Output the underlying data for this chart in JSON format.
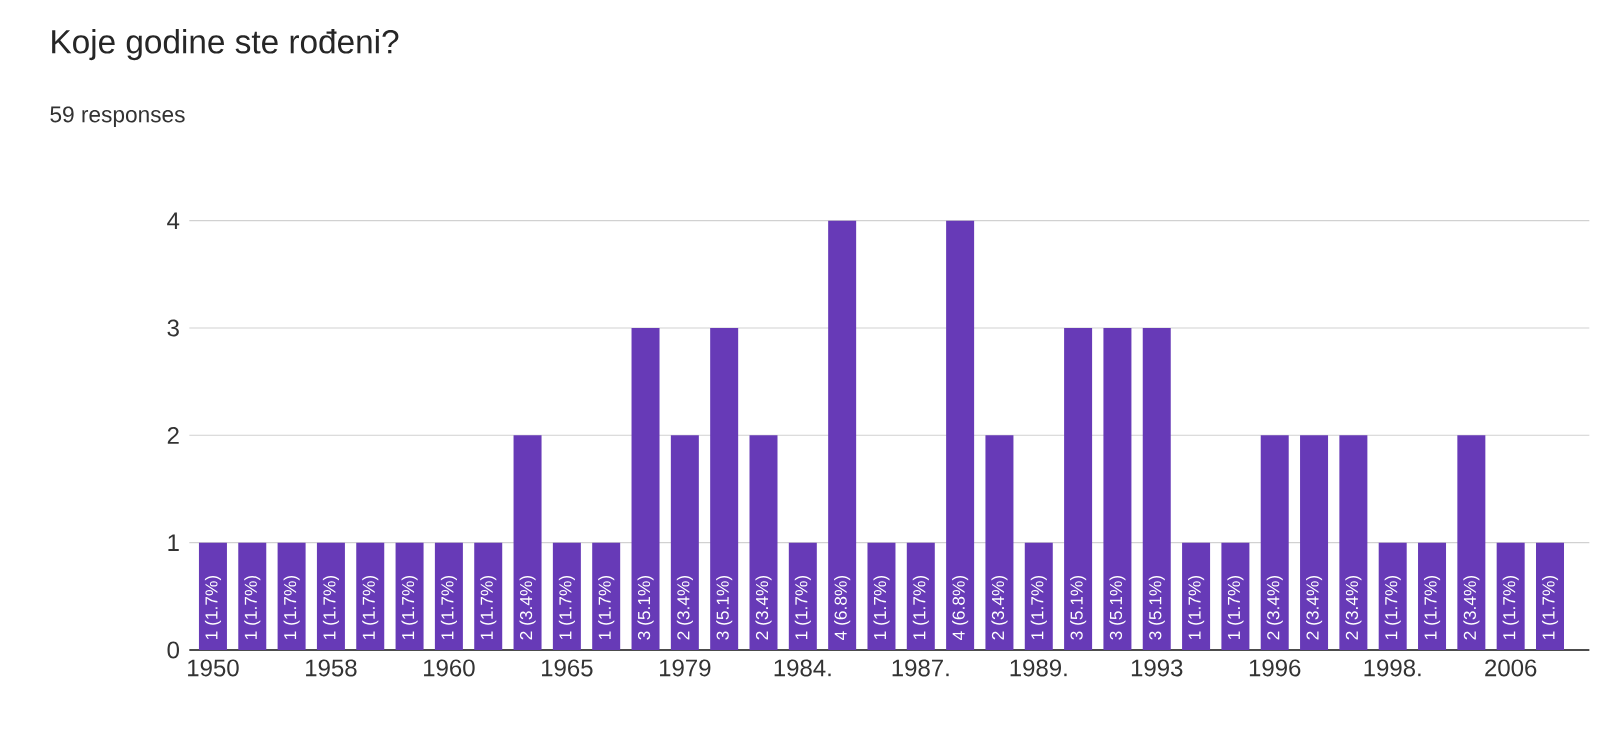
{
  "chart_data": {
    "type": "bar",
    "title": "Koje godine ste rođeni?",
    "subtitle": "59 responses",
    "categories": [
      "1950",
      null,
      null,
      "1958",
      null,
      null,
      "1960",
      null,
      null,
      "1965",
      null,
      null,
      "1979",
      null,
      null,
      "1984.",
      null,
      null,
      "1987.",
      null,
      null,
      "1989.",
      null,
      null,
      "1993",
      null,
      null,
      "1996",
      null,
      null,
      "1998.",
      null,
      null,
      "2006",
      null
    ],
    "values": [
      1,
      1,
      1,
      1,
      1,
      1,
      1,
      1,
      2,
      1,
      1,
      3,
      2,
      3,
      2,
      1,
      4,
      1,
      1,
      4,
      2,
      1,
      3,
      3,
      3,
      1,
      1,
      2,
      2,
      2,
      1,
      1,
      2,
      1,
      1
    ],
    "value_labels": [
      "1 (1.7%)",
      "1 (1.7%)",
      "1 (1.7%)",
      "1 (1.7%)",
      "1 (1.7%)",
      "1 (1.7%)",
      "1 (1.7%)",
      "1 (1.7%)",
      "2 (3.4%)",
      "1 (1.7%)",
      "1 (1.7%)",
      "3 (5.1%)",
      "2 (3.4%)",
      "3 (5.1%)",
      "2 (3.4%)",
      "1 (1.7%)",
      "4 (6.8%)",
      "1 (1.7%)",
      "1 (1.7%)",
      "4 (6.8%)",
      "2 (3.4%)",
      "1 (1.7%)",
      "3 (5.1%)",
      "3 (5.1%)",
      "3 (5.1%)",
      "1 (1.7%)",
      "1 (1.7%)",
      "2 (3.4%)",
      "2 (3.4%)",
      "2 (3.4%)",
      "1 (1.7%)",
      "1 (1.7%)",
      "2 (3.4%)",
      "1 (1.7%)",
      "1 (1.7%)"
    ],
    "color": "#673ab7",
    "ylim": [
      0,
      4
    ],
    "yticks": [
      0,
      1,
      2,
      3,
      4
    ],
    "grid": "y"
  }
}
